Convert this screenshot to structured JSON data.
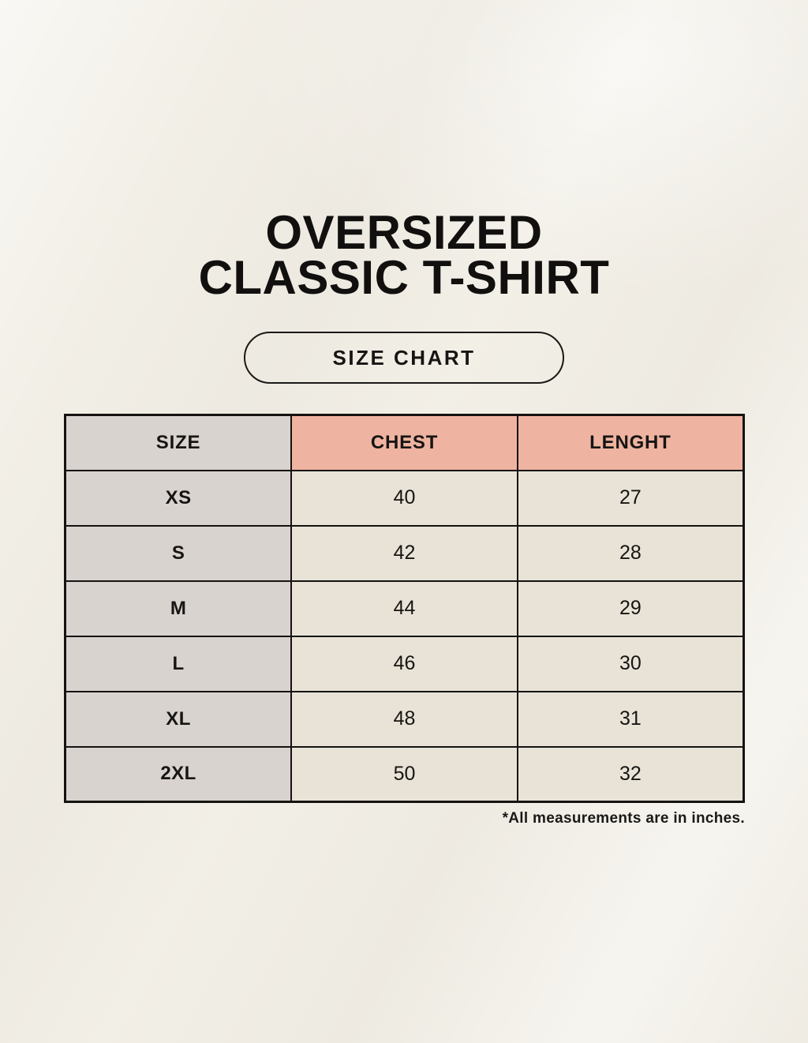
{
  "page": {
    "title_line1": "OVERSIZED",
    "title_line2": "CLASSIC T-SHIRT",
    "size_chart_button_label": "SIZE CHART",
    "footnote": "*All measurements are in inches."
  },
  "table": {
    "columns": [
      "SIZE",
      "CHEST",
      "LENGHT"
    ],
    "rows": [
      {
        "size": "XS",
        "chest": "40",
        "length": "27"
      },
      {
        "size": "S",
        "chest": "42",
        "length": "28"
      },
      {
        "size": "M",
        "chest": "44",
        "length": "29"
      },
      {
        "size": "L",
        "chest": "46",
        "length": "30"
      },
      {
        "size": "XL",
        "chest": "48",
        "length": "31"
      },
      {
        "size": "2XL",
        "chest": "50",
        "length": "32"
      }
    ]
  },
  "colors": {
    "page_background": "#f2efe7",
    "size_column_background": "#d9d3cf",
    "measure_header_background": "#efb4a1",
    "data_cell_background": "#e9e3d7",
    "border": "#141311",
    "text": "#161513"
  }
}
